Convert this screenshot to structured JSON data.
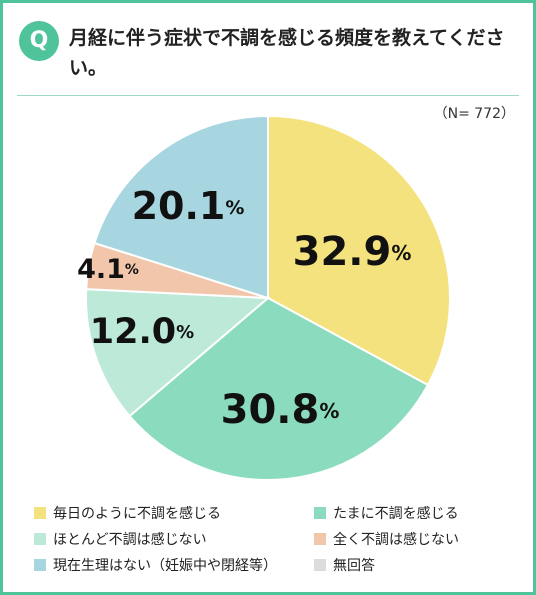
{
  "question": {
    "badge": "Q",
    "title": "月経に伴う症状で不調を感じる頻度を教えてください。"
  },
  "sample_label": "（N= 772）",
  "colors": {
    "accent": "#4fc39a",
    "yellow": "#f4e27f",
    "teal": "#8bdcbe",
    "mint": "#bde9d9",
    "salmon": "#f1c6aa",
    "blue": "#a7d6e0",
    "gray": "#dcdcdc"
  },
  "chart_data": {
    "type": "pie",
    "start": "12 o'clock, clockwise",
    "slices": [
      {
        "label": "毎日のように不調を感じる",
        "value": 32.9,
        "value_text": "32.9",
        "unit": "%",
        "color": "#f4e27f"
      },
      {
        "label": "たまに不調を感じる",
        "value": 30.8,
        "value_text": "30.8",
        "unit": "%",
        "color": "#8bdcbe"
      },
      {
        "label": "ほとんど不調は感じない",
        "value": 12.0,
        "value_text": "12.0",
        "unit": "%",
        "color": "#bde9d9"
      },
      {
        "label": "全く不調は感じない",
        "value": 4.1,
        "value_text": "4.1",
        "unit": "%",
        "color": "#f1c6aa"
      },
      {
        "label": "現在生理はない（妊娠中や閉経等）",
        "value": 20.1,
        "value_text": "20.1",
        "unit": "%",
        "color": "#a7d6e0"
      },
      {
        "label": "無回答",
        "value": 0.0,
        "value_text": "",
        "unit": "",
        "color": "#dcdcdc"
      }
    ],
    "legend": {
      "placement": "bottom",
      "entries": [
        {
          "label": "毎日のように不調を感じる",
          "color": "#f4e27f"
        },
        {
          "label": "たまに不調を感じる",
          "color": "#8bdcbe"
        },
        {
          "label": "ほとんど不調は感じない",
          "color": "#bde9d9"
        },
        {
          "label": "全く不調は感じない",
          "color": "#f1c6aa"
        },
        {
          "label": "現在生理はない（妊娠中や閉経等）",
          "color": "#a7d6e0"
        },
        {
          "label": "無回答",
          "color": "#dcdcdc"
        }
      ]
    }
  }
}
